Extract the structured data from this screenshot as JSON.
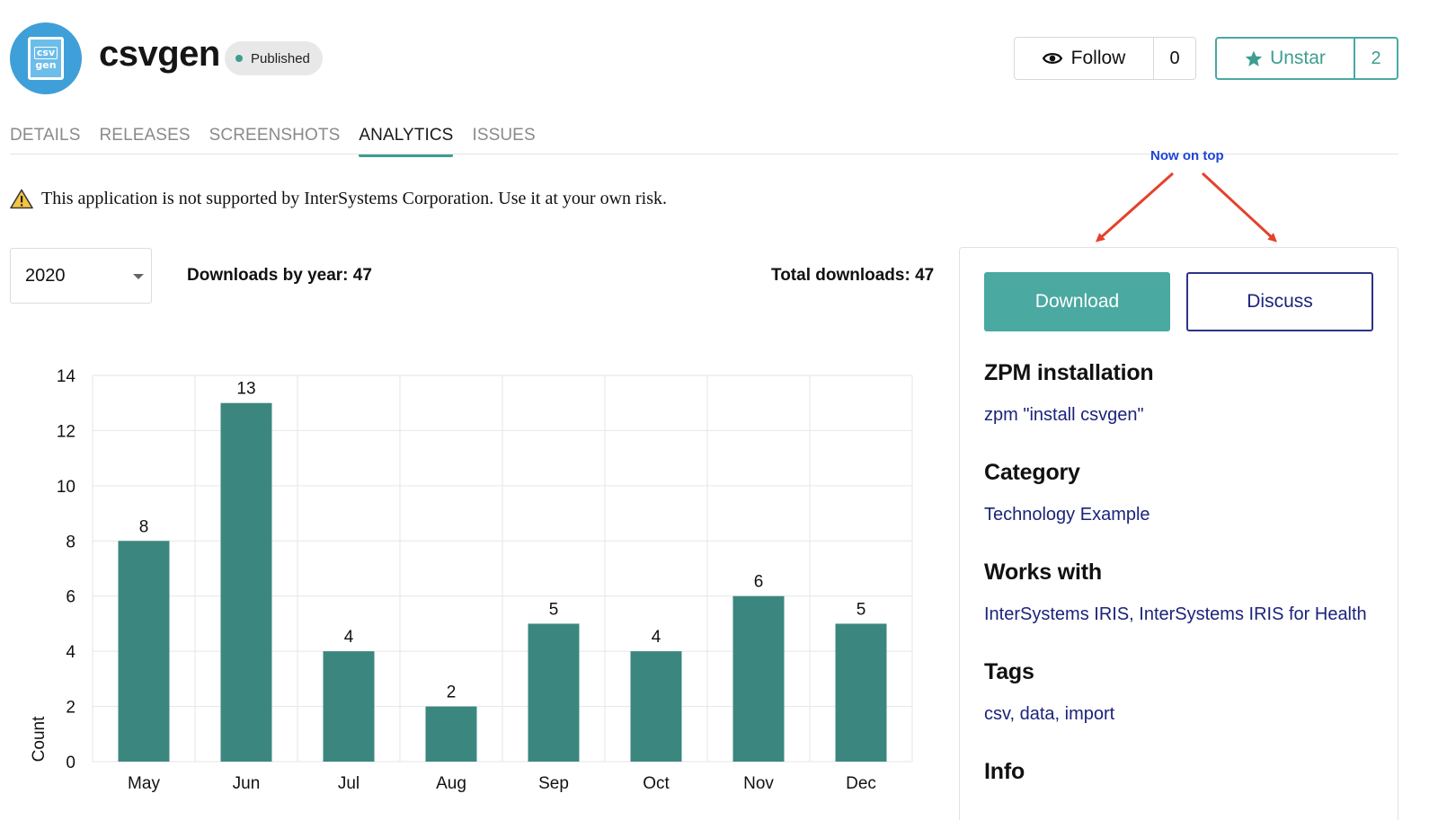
{
  "app": {
    "logo_line1": "csv",
    "logo_line2": "gen",
    "title": "csvgen",
    "status": "Published"
  },
  "header": {
    "follow_label": "Follow",
    "follow_count": "0",
    "star_label": "Unstar",
    "star_count": "2"
  },
  "tabs": [
    {
      "label": "DETAILS",
      "active": false
    },
    {
      "label": "RELEASES",
      "active": false
    },
    {
      "label": "SCREENSHOTS",
      "active": false
    },
    {
      "label": "ANALYTICS",
      "active": true
    },
    {
      "label": "ISSUES",
      "active": false
    }
  ],
  "warning": "This application is not supported by InterSystems Corporation. Use it at your own risk.",
  "annotation": "Now on top",
  "analytics": {
    "year": "2020",
    "downloads_by_year": "Downloads by year: 47",
    "total_downloads": "Total downloads: 47"
  },
  "chart_data": {
    "type": "bar",
    "categories": [
      "May",
      "Jun",
      "Jul",
      "Aug",
      "Sep",
      "Oct",
      "Nov",
      "Dec"
    ],
    "values": [
      8,
      13,
      4,
      2,
      5,
      4,
      6,
      5
    ],
    "ylabel": "Count",
    "ylim": [
      0,
      14
    ],
    "yticks": [
      0,
      2,
      4,
      6,
      8,
      10,
      12,
      14
    ],
    "grid": true,
    "bar_color": "#3b8780"
  },
  "sidebar": {
    "download_label": "Download",
    "discuss_label": "Discuss",
    "zpm_heading": "ZPM installation",
    "zpm_command": "zpm \"install csvgen\"",
    "category_heading": "Category",
    "category_value": "Technology Example",
    "works_heading": "Works with",
    "works_value": "InterSystems IRIS, InterSystems IRIS for Health",
    "tags_heading": "Tags",
    "tags_value": "csv, data, import",
    "info_heading": "Info"
  },
  "colors": {
    "accent": "#4aa9a1",
    "link": "#1b237b",
    "annotation": "#1f43d6",
    "arrow": "#e5412b"
  }
}
